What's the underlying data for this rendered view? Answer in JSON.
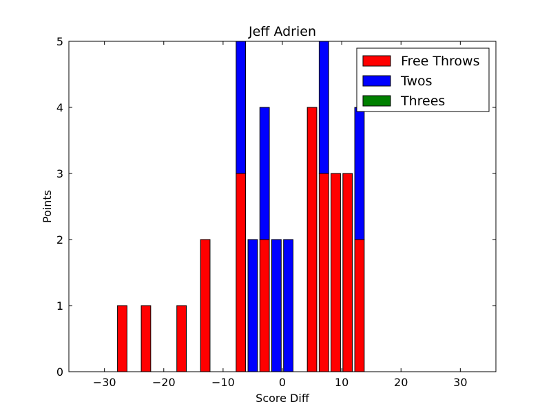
{
  "chart_data": {
    "type": "bar",
    "stacked": true,
    "title": "Jeff Adrien",
    "xlabel": "Score Diff",
    "ylabel": "Points",
    "xlim": [
      -36,
      36
    ],
    "ylim": [
      0,
      5
    ],
    "xticks": [
      -30,
      -20,
      -10,
      0,
      10,
      20,
      30
    ],
    "xtick_labels": [
      "−30",
      "−20",
      "−10",
      "0",
      "10",
      "20",
      "30"
    ],
    "yticks": [
      0,
      1,
      2,
      3,
      4,
      5
    ],
    "ytick_labels": [
      "0",
      "1",
      "2",
      "3",
      "4",
      "5"
    ],
    "bar_width": 1.6,
    "x": [
      -35,
      -33,
      -31,
      -29,
      -27,
      -25,
      -23,
      -21,
      -19,
      -17,
      -15,
      -13,
      -11,
      -9,
      -7,
      -5,
      -3,
      -1,
      1,
      3,
      5,
      7,
      9,
      11,
      13,
      15,
      17,
      19,
      21,
      23,
      25,
      27,
      29,
      31,
      33,
      35
    ],
    "series": [
      {
        "name": "Free Throws",
        "color": "#ff0000",
        "values": [
          0,
          0,
          0,
          0,
          1,
          0,
          1,
          0,
          0,
          1,
          0,
          2,
          0,
          0,
          3,
          0,
          2,
          0,
          0,
          0,
          4,
          3,
          3,
          3,
          2,
          0,
          0,
          0,
          0,
          0,
          0,
          0,
          0,
          0,
          0,
          0
        ]
      },
      {
        "name": "Twos",
        "color": "#0000ff",
        "values": [
          0,
          0,
          0,
          0,
          0,
          0,
          0,
          0,
          0,
          0,
          0,
          0,
          0,
          0,
          2,
          2,
          2,
          2,
          2,
          0,
          0,
          2,
          0,
          0,
          2,
          0,
          0,
          0,
          0,
          0,
          0,
          0,
          0,
          0,
          0,
          0
        ]
      },
      {
        "name": "Threes",
        "color": "#008000",
        "values": [
          0,
          0,
          0,
          0,
          0,
          0,
          0,
          0,
          0,
          0,
          0,
          0,
          0,
          0,
          0,
          0,
          0,
          0,
          0,
          0,
          0,
          0,
          0,
          0,
          0,
          0,
          0,
          0,
          0,
          0,
          0,
          0,
          0,
          0,
          0,
          0
        ]
      }
    ],
    "legend_position": "top-right",
    "grid": false
  }
}
